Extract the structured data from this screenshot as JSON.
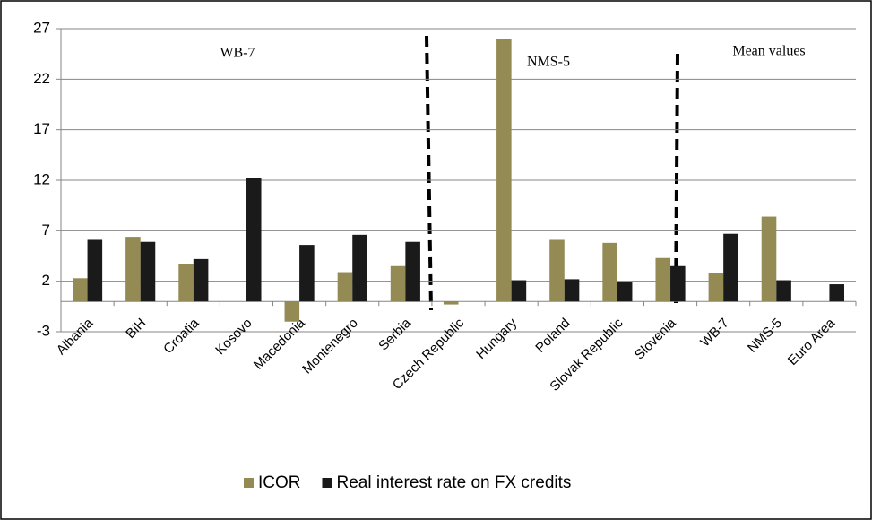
{
  "chart_data": {
    "type": "bar",
    "categories": [
      "Albania",
      "BiH",
      "Croatia",
      "Kosovo",
      "Macedonia",
      "Montenegro",
      "Serbia",
      "Czech Republic",
      "Hungary",
      "Poland",
      "Slovak Republic",
      "Slovenia",
      "WB-7",
      "NMS-5",
      "Euro Area"
    ],
    "series": [
      {
        "name": "ICOR",
        "color": "#948a54",
        "values": [
          2.3,
          6.4,
          3.7,
          null,
          -2.0,
          2.9,
          3.5,
          -0.3,
          26.0,
          6.1,
          5.8,
          4.3,
          2.8,
          8.4,
          null
        ]
      },
      {
        "name": "Real interest rate on FX credits",
        "color": "#1a1a1a",
        "values": [
          6.1,
          5.9,
          4.2,
          12.2,
          5.6,
          6.6,
          5.9,
          null,
          2.1,
          2.2,
          1.9,
          3.5,
          6.7,
          2.1,
          1.7
        ]
      }
    ],
    "ylim": [
      -3,
      27
    ],
    "yticks": [
      -3,
      2,
      7,
      12,
      17,
      22,
      27
    ],
    "grid": true,
    "legend": "bottom",
    "annotations": [
      "WB-7",
      "NMS-5",
      "Mean values"
    ]
  }
}
